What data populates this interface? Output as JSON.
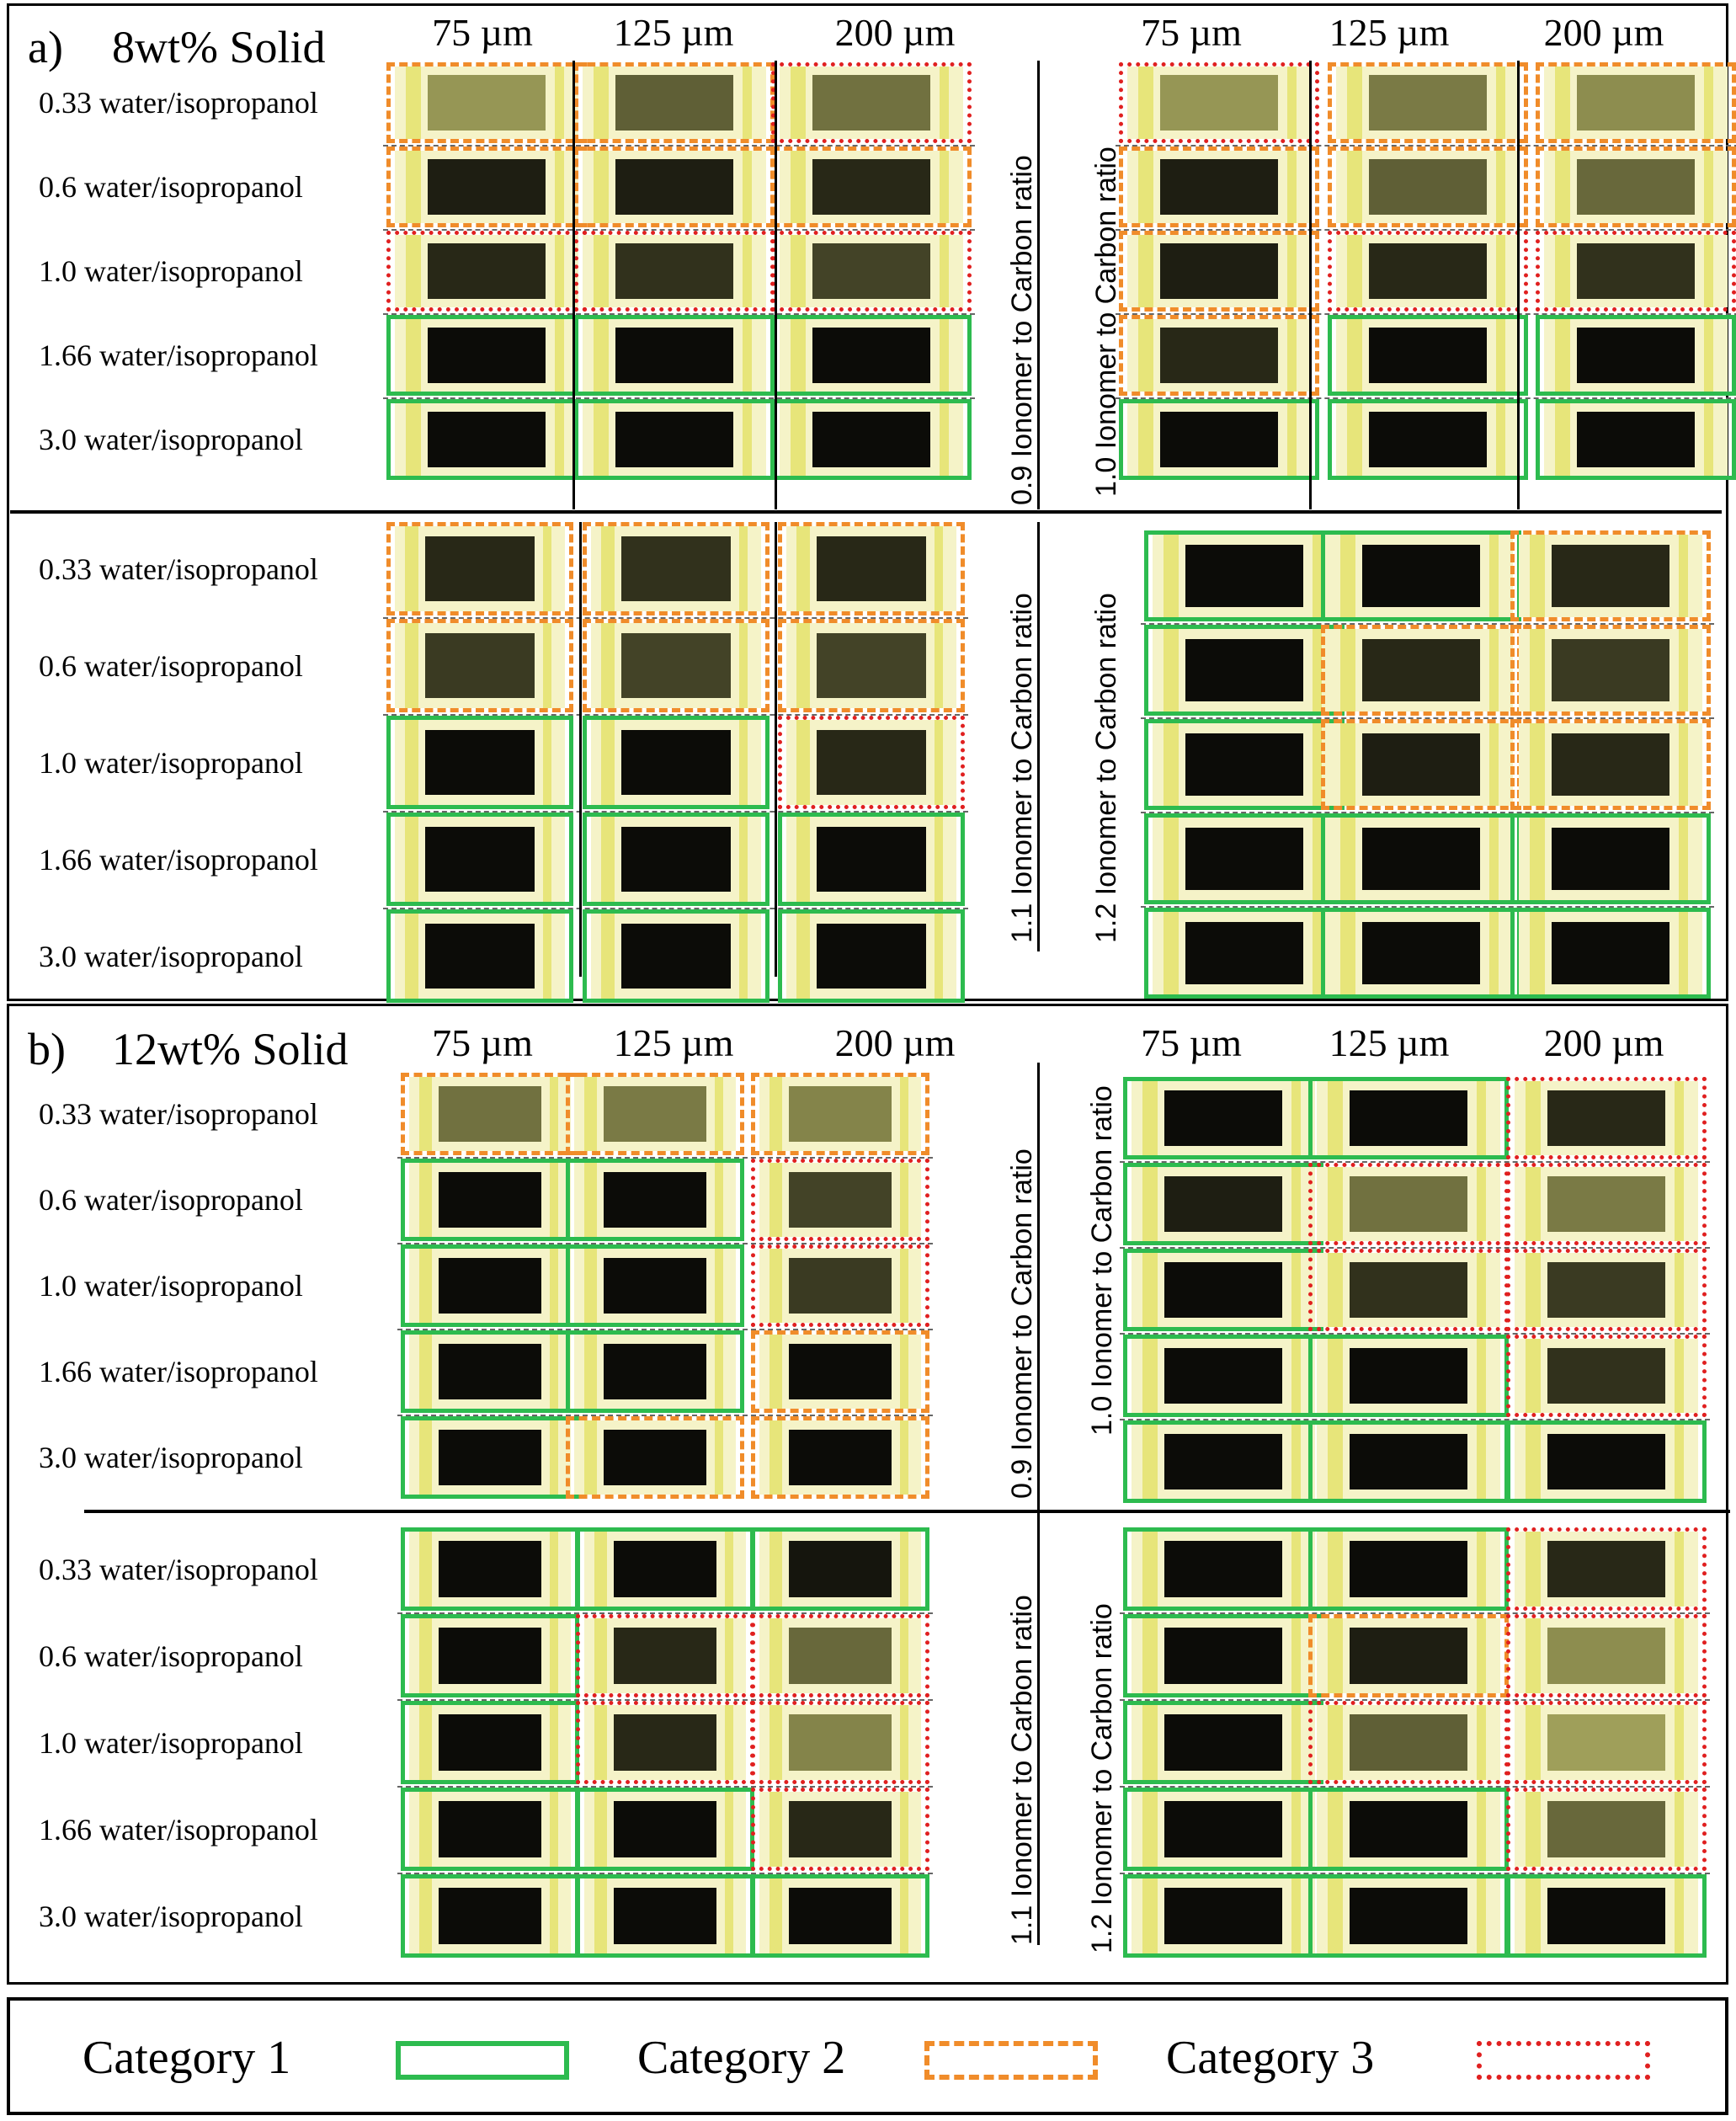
{
  "sizes": [
    "75 µm",
    "125 µm",
    "200 µm"
  ],
  "rows": [
    "0.33 water/isopropanol",
    "0.6 water/isopropanol",
    "1.0 water/isopropanol",
    "1.66 water/isopropanol",
    "3.0 water/isopropanol"
  ],
  "panels": [
    {
      "label": "a)",
      "title": "8wt% Solid",
      "quadrants": [
        {
          "ratio_label": "0.9 Ionomer  to Carbon ratio",
          "categories": [
            [
              2,
              2,
              3
            ],
            [
              2,
              2,
              2
            ],
            [
              3,
              3,
              3
            ],
            [
              1,
              1,
              1
            ],
            [
              1,
              1,
              1
            ]
          ],
          "darkness": [
            [
              0.25,
              0.55,
              0.45
            ],
            [
              0.9,
              0.9,
              0.85
            ],
            [
              0.85,
              0.8,
              0.7
            ],
            [
              1,
              1,
              1
            ],
            [
              1,
              1,
              1
            ]
          ]
        },
        {
          "ratio_label": "1.0 Ionomer  to Carbon ratio",
          "categories": [
            [
              3,
              2,
              2
            ],
            [
              2,
              2,
              2
            ],
            [
              2,
              3,
              3
            ],
            [
              2,
              1,
              1
            ],
            [
              1,
              1,
              1
            ]
          ],
          "darkness": [
            [
              0.25,
              0.4,
              0.3
            ],
            [
              0.9,
              0.55,
              0.5
            ],
            [
              0.9,
              0.85,
              0.8
            ],
            [
              0.85,
              1,
              1
            ],
            [
              1,
              1,
              1
            ]
          ]
        },
        {
          "ratio_label": "1.1 Ionomer  to Carbon ratio",
          "categories": [
            [
              2,
              2,
              2
            ],
            [
              2,
              2,
              2
            ],
            [
              1,
              1,
              3
            ],
            [
              1,
              1,
              1
            ],
            [
              1,
              1,
              1
            ]
          ],
          "darkness": [
            [
              0.85,
              0.8,
              0.85
            ],
            [
              0.75,
              0.7,
              0.7
            ],
            [
              1,
              1,
              0.85
            ],
            [
              1,
              1,
              1
            ],
            [
              1,
              1,
              1
            ]
          ]
        },
        {
          "ratio_label": "1.2 Ionomer  to Carbon ratio",
          "categories": [
            [
              1,
              1,
              2
            ],
            [
              1,
              2,
              2
            ],
            [
              1,
              2,
              2
            ],
            [
              1,
              1,
              1
            ],
            [
              1,
              1,
              1
            ]
          ],
          "darkness": [
            [
              1,
              1,
              0.85
            ],
            [
              1,
              0.85,
              0.75
            ],
            [
              1,
              0.9,
              0.85
            ],
            [
              1,
              1,
              1
            ],
            [
              1,
              1,
              1
            ]
          ]
        }
      ]
    },
    {
      "label": "b)",
      "title": "12wt% Solid",
      "quadrants": [
        {
          "ratio_label": "0.9 Ionomer  to Carbon ratio",
          "categories": [
            [
              2,
              2,
              2
            ],
            [
              1,
              1,
              3
            ],
            [
              1,
              1,
              3
            ],
            [
              1,
              1,
              2
            ],
            [
              1,
              2,
              2
            ]
          ],
          "darkness": [
            [
              0.45,
              0.4,
              0.35
            ],
            [
              1,
              1,
              0.7
            ],
            [
              1,
              1,
              0.75
            ],
            [
              1,
              1,
              1
            ],
            [
              1,
              1,
              1
            ]
          ]
        },
        {
          "ratio_label": "1.0 Ionomer  to Carbon ratio",
          "categories": [
            [
              1,
              1,
              3
            ],
            [
              1,
              3,
              3
            ],
            [
              1,
              3,
              3
            ],
            [
              1,
              1,
              3
            ],
            [
              1,
              1,
              1
            ]
          ],
          "darkness": [
            [
              1,
              1,
              0.85
            ],
            [
              0.9,
              0.45,
              0.4
            ],
            [
              1,
              0.8,
              0.75
            ],
            [
              1,
              1,
              0.8
            ],
            [
              1,
              1,
              1
            ]
          ]
        },
        {
          "ratio_label": "1.1 Ionomer  to Carbon ratio",
          "categories": [
            [
              1,
              1,
              1
            ],
            [
              1,
              3,
              3
            ],
            [
              1,
              3,
              3
            ],
            [
              1,
              1,
              3
            ],
            [
              1,
              1,
              1
            ]
          ],
          "darkness": [
            [
              1,
              1,
              0.95
            ],
            [
              1,
              0.85,
              0.5
            ],
            [
              1,
              0.85,
              0.35
            ],
            [
              1,
              1,
              0.85
            ],
            [
              1,
              1,
              1
            ]
          ]
        },
        {
          "ratio_label": "1.2 Ionomer  to Carbon ratio",
          "categories": [
            [
              1,
              1,
              3
            ],
            [
              1,
              2,
              3
            ],
            [
              1,
              3,
              3
            ],
            [
              1,
              1,
              3
            ],
            [
              1,
              1,
              1
            ]
          ],
          "darkness": [
            [
              1,
              1,
              0.85
            ],
            [
              1,
              0.9,
              0.3
            ],
            [
              1,
              0.55,
              0.2
            ],
            [
              1,
              1,
              0.5
            ],
            [
              1,
              1,
              1
            ]
          ]
        }
      ]
    }
  ],
  "legend": {
    "items": [
      {
        "label": "Category  1",
        "style": "solid green",
        "color": "#2dbb4f"
      },
      {
        "label": "Category  2",
        "style": "dashed orange",
        "color": "#f08c2a"
      },
      {
        "label": "Category  3",
        "style": "dotted red",
        "color": "#e02020"
      }
    ]
  }
}
